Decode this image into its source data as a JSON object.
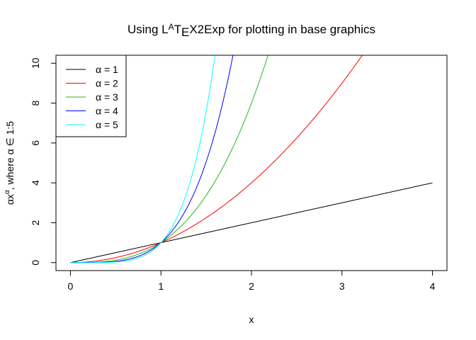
{
  "chart_data": {
    "type": "line",
    "title_parts": {
      "a": "Using L",
      "b": "A",
      "c": "T",
      "d": "E",
      "e": "X2Exp for plotting in base graphics"
    },
    "xlabel": "x",
    "ylabel_parts": {
      "a": "αx",
      "sup": "α",
      "b": ",  where α ∈ 1:5"
    },
    "xlim": [
      -0.16,
      4.16
    ],
    "ylim": [
      -0.4,
      10.4
    ],
    "xticks": [
      0,
      1,
      2,
      3,
      4
    ],
    "yticks": [
      0,
      2,
      4,
      6,
      8,
      10
    ],
    "x_range": [
      0,
      4
    ],
    "grid": false,
    "legend_position": "top-left",
    "series": [
      {
        "name": "α = 1",
        "alpha": 1,
        "color": "#000000"
      },
      {
        "name": "α = 2",
        "alpha": 2,
        "color": "#ff0000"
      },
      {
        "name": "α = 3",
        "alpha": 3,
        "color": "#22b722"
      },
      {
        "name": "α = 4",
        "alpha": 4,
        "color": "#0000ff"
      },
      {
        "name": "α = 5",
        "alpha": 5,
        "color": "#00ffff"
      }
    ]
  }
}
